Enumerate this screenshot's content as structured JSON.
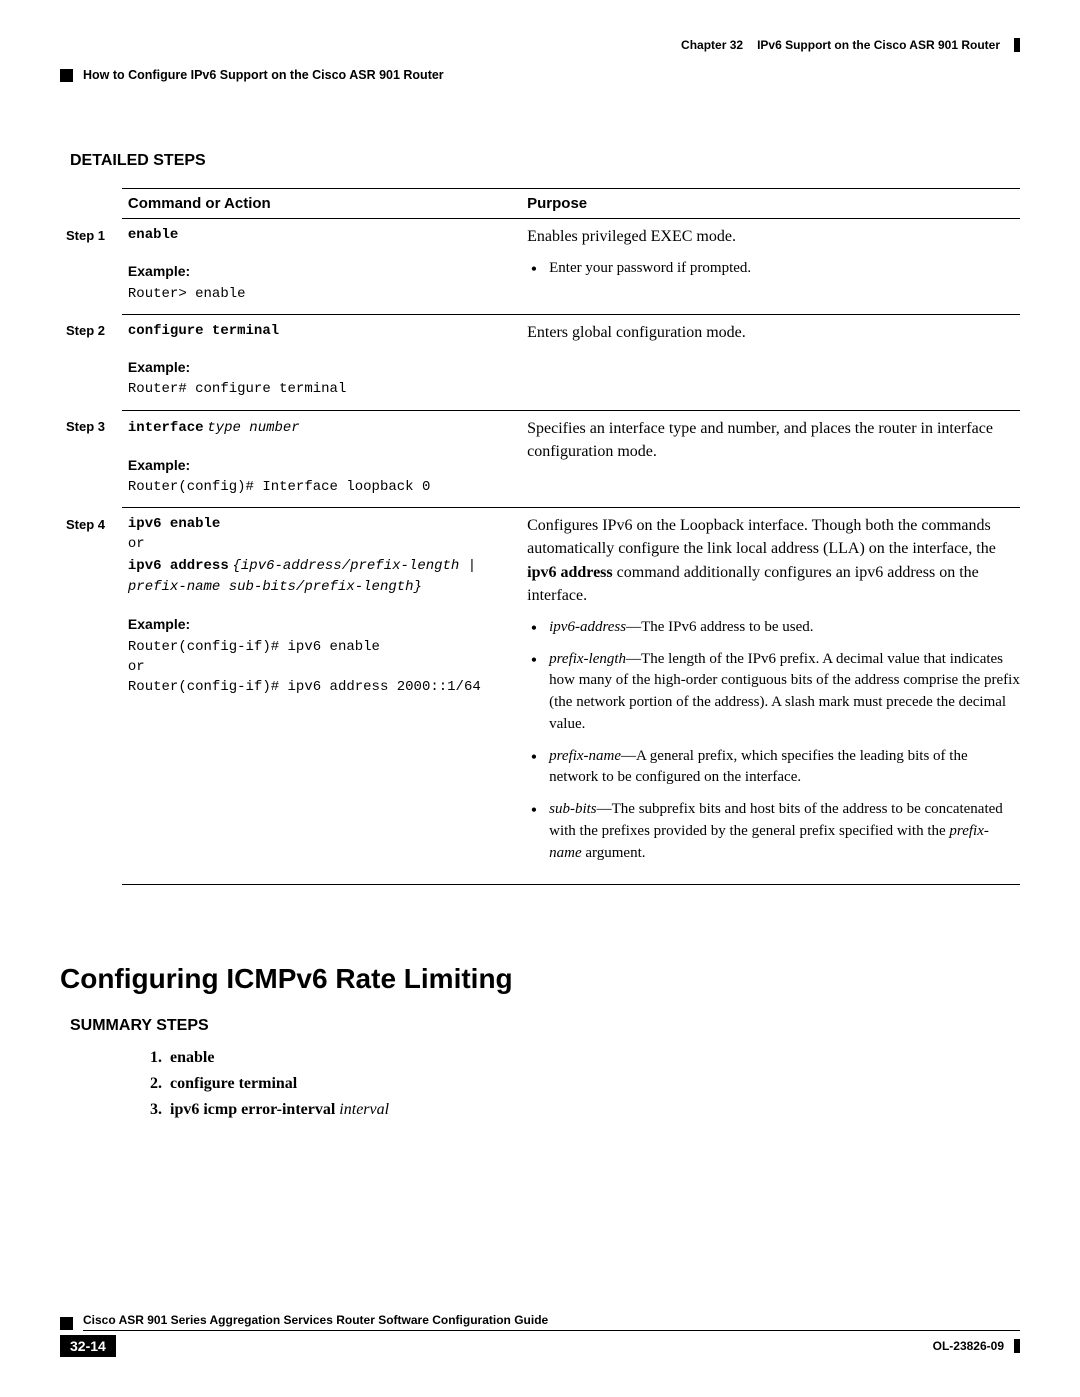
{
  "header": {
    "chapter_label": "Chapter 32",
    "chapter_title": "IPv6 Support on the Cisco ASR 901 Router",
    "section_title": "How to Configure IPv6 Support on the Cisco ASR 901 Router"
  },
  "detailed_steps_heading": "DETAILED STEPS",
  "table_headers": {
    "command": "Command or Action",
    "purpose": "Purpose"
  },
  "steps": [
    {
      "label": "Step 1",
      "command": "enable",
      "example_label": "Example:",
      "example": "Router> enable",
      "purpose_main": "Enables privileged EXEC mode.",
      "purpose_bullets": [
        "Enter your password if prompted."
      ]
    },
    {
      "label": "Step 2",
      "command": "configure terminal",
      "example_label": "Example:",
      "example": "Router# configure terminal",
      "purpose_main": "Enters global configuration mode."
    },
    {
      "label": "Step 3",
      "command_bold": "interface",
      "command_italic": "type number",
      "example_label": "Example:",
      "example": "Router(config)# Interface loopback 0",
      "purpose_main": "Specifies an interface type and number, and places the router in interface configuration mode."
    },
    {
      "label": "Step 4",
      "command_line1_bold": "ipv6 enable",
      "command_line2": "or",
      "command_line3_bold": "ipv6 address",
      "command_line3_italic": "{ipv6-address/prefix-length | prefix-name sub-bits/prefix-length}",
      "example_label": "Example:",
      "example_line1": "Router(config-if)# ipv6 enable",
      "example_line2": "or",
      "example_line3": "Router(config-if)# ipv6 address 2000::1/64",
      "purpose_p1_pre": "Configures IPv6 on the Loopback interface. Though both the commands automatically configure the link local address (LLA) on the interface, the ",
      "purpose_p1_bold": "ipv6 address",
      "purpose_p1_post": " command additionally configures an ipv6 address on the interface.",
      "bullets": {
        "b1_term": "ipv6-address",
        "b1_text": "—The IPv6 address to be used.",
        "b2_term": "prefix-length",
        "b2_text": "—The length of the IPv6 prefix. A decimal value that indicates how many of the high-order contiguous bits of the address comprise the prefix (the network portion of the address). A slash mark must precede the decimal value.",
        "b3_term": "prefix-name",
        "b3_text": "—A general prefix, which specifies the leading bits of the network to be configured on the interface.",
        "b4_term": "sub-bits",
        "b4_text_pre": "—The subprefix bits and host bits of the address to be concatenated with the prefixes provided by the general prefix specified with the ",
        "b4_text_italic": "prefix-name",
        "b4_text_post": " argument."
      }
    }
  ],
  "section2": {
    "heading": "Configuring ICMPv6 Rate Limiting",
    "summary_heading": "SUMMARY STEPS",
    "items": [
      {
        "num": "1.",
        "bold": "enable"
      },
      {
        "num": "2.",
        "bold": "configure terminal"
      },
      {
        "num": "3.",
        "bold": "ipv6 icmp error-interval",
        "italic": "interval"
      }
    ]
  },
  "footer": {
    "guide_title": "Cisco ASR 901 Series Aggregation Services Router Software Configuration Guide",
    "page_number": "32-14",
    "doc_id": "OL-23826-09"
  }
}
